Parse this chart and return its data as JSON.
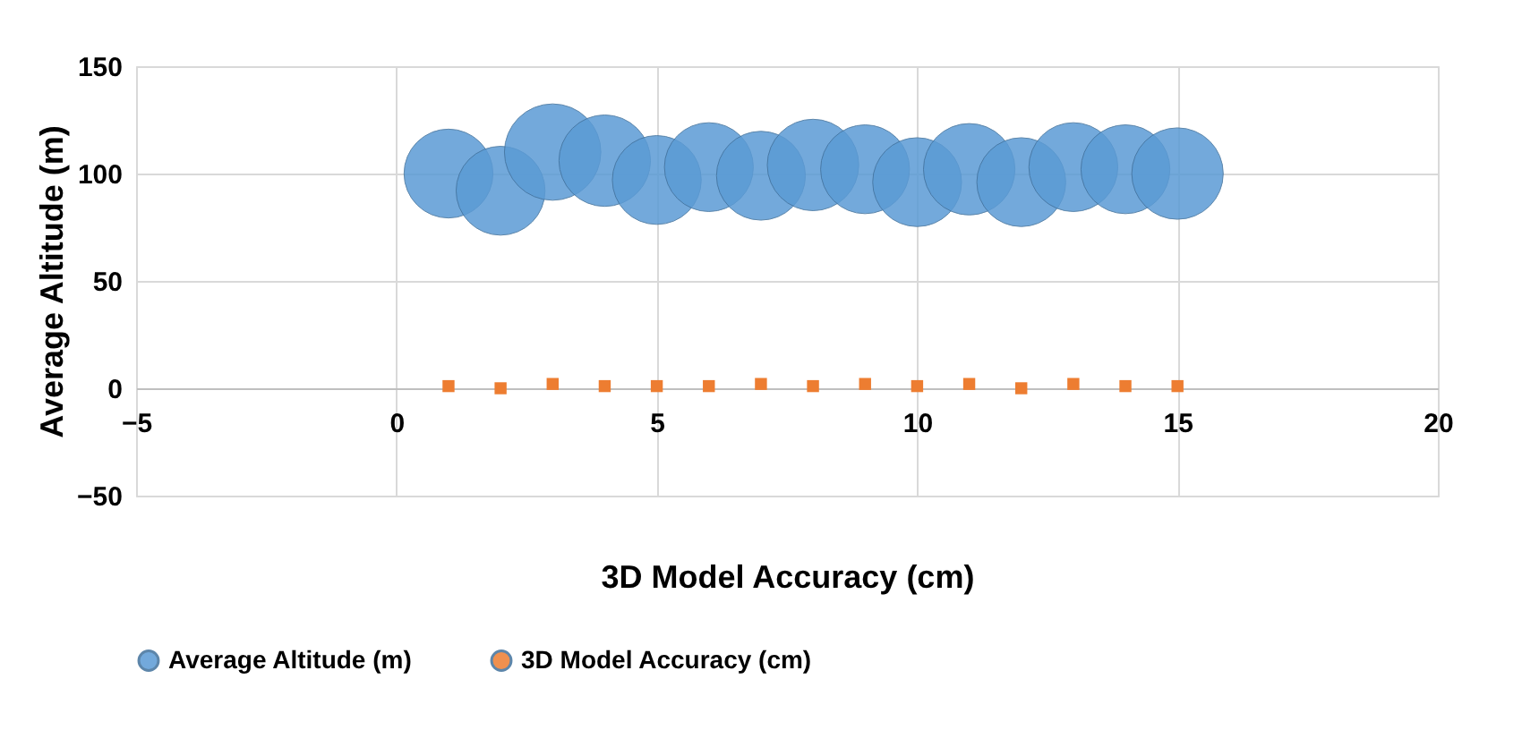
{
  "chart_data": {
    "type": "bubble",
    "xlabel": "3D Model Accuracy (cm)",
    "ylabel": "Average Altitude (m)",
    "x": [
      1,
      2,
      3,
      4,
      5,
      6,
      7,
      8,
      9,
      10,
      11,
      12,
      13,
      14,
      15
    ],
    "series": [
      {
        "name": "Average Altitude (m)",
        "color": "#5b9bd5",
        "values": [
          100,
          92,
          110,
          106,
          97,
          103,
          99,
          104,
          102,
          96,
          102,
          96,
          103,
          102,
          100
        ],
        "sizes": [
          0.85,
          0.85,
          1,
          0.9,
          0.85,
          0.85,
          0.85,
          0.9,
          0.85,
          0.85,
          0.9,
          0.85,
          0.85,
          0.85,
          0.9
        ]
      },
      {
        "name": "3D Model Accuracy (cm)",
        "color": "#ed7d31",
        "type": "scatter",
        "marker": "square",
        "values": [
          1,
          0,
          2,
          1,
          1,
          1,
          2,
          1,
          2,
          1,
          2,
          0,
          2,
          1,
          1
        ]
      }
    ],
    "xlim": [
      -5,
      20
    ],
    "xticks": [
      -5,
      0,
      5,
      10,
      15,
      20
    ],
    "ylim": [
      -50,
      150
    ],
    "yticks": [
      -50,
      0,
      50,
      100,
      150
    ],
    "grid": true,
    "legend": "bottom"
  }
}
